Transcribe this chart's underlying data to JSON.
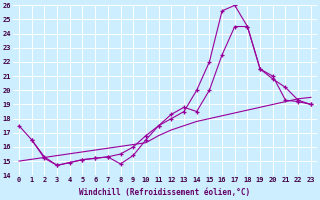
{
  "xlabel": "Windchill (Refroidissement éolien,°C)",
  "bg_color": "#cceeff",
  "grid_color": "#ffffff",
  "line_color": "#990099",
  "xlim": [
    -0.5,
    23.5
  ],
  "ylim": [
    14,
    26
  ],
  "yticks": [
    14,
    15,
    16,
    17,
    18,
    19,
    20,
    21,
    22,
    23,
    24,
    25,
    26
  ],
  "xticks": [
    0,
    1,
    2,
    3,
    4,
    5,
    6,
    7,
    8,
    9,
    10,
    11,
    12,
    13,
    14,
    15,
    16,
    17,
    18,
    19,
    20,
    21,
    22,
    23
  ],
  "line1_x": [
    0,
    1,
    2,
    3,
    4,
    5,
    6,
    7,
    8,
    9,
    10,
    11,
    12,
    13,
    14,
    15,
    16,
    17,
    18,
    19,
    20,
    21,
    22,
    23
  ],
  "line1_y": [
    17.5,
    16.5,
    15.2,
    14.7,
    14.9,
    15.1,
    15.2,
    15.3,
    15.5,
    16.0,
    16.8,
    17.5,
    18.0,
    18.5,
    20.0,
    22.0,
    25.6,
    26.0,
    24.5,
    21.5,
    21.0,
    19.3,
    19.2,
    19.0
  ],
  "line2_x": [
    1,
    2,
    3,
    5,
    6,
    7,
    8,
    9,
    10,
    11,
    12,
    13,
    14,
    15,
    16,
    17,
    18,
    19,
    20,
    21,
    22,
    23
  ],
  "line2_y": [
    16.5,
    15.3,
    14.7,
    15.1,
    15.2,
    15.3,
    14.8,
    15.4,
    16.5,
    17.5,
    18.3,
    18.8,
    18.5,
    20.0,
    22.5,
    24.5,
    24.5,
    21.5,
    20.8,
    20.2,
    19.3,
    19.0
  ],
  "line3_x": [
    0,
    10,
    11,
    12,
    13,
    14,
    15,
    16,
    17,
    18,
    19,
    20,
    21,
    22,
    23
  ],
  "line3_y": [
    15.0,
    16.3,
    16.8,
    17.2,
    17.5,
    17.8,
    18.0,
    18.2,
    18.4,
    18.6,
    18.8,
    19.0,
    19.2,
    19.4,
    19.5
  ]
}
